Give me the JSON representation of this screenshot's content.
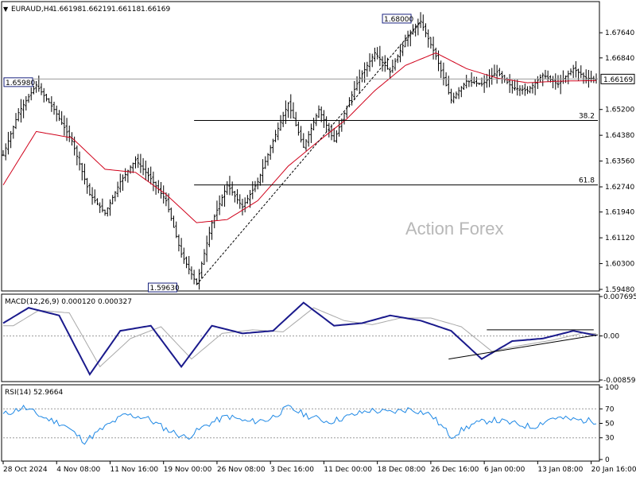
{
  "chart_data": {
    "type": "candlestick",
    "title": "EURAUD,H4",
    "ohlc": {
      "open": "1.66198",
      "high": "1.66219",
      "low": "1.66118",
      "close": "1.66169"
    },
    "watermark": "Action Forex",
    "price_panel": {
      "ylim": [
        1.5948,
        1.6858
      ],
      "yticks": [
        "1.67640",
        "1.66840",
        "1.66169",
        "1.65200",
        "1.64380",
        "1.63560",
        "1.62740",
        "1.61940",
        "1.61120",
        "1.60300",
        "1.59480"
      ],
      "current_price": "1.66169",
      "price_series_x_index": [
        0,
        6,
        13,
        20,
        27,
        34,
        40,
        46,
        52,
        58,
        64,
        70,
        76,
        82,
        88,
        94,
        100,
        106,
        112,
        118,
        124,
        130,
        135,
        140,
        146,
        152,
        158,
        164,
        170,
        176,
        182,
        188,
        194,
        200,
        206,
        212,
        218,
        224,
        229,
        233
      ],
      "price_series": [
        1.6375,
        1.651,
        1.6598,
        1.652,
        1.642,
        1.625,
        1.619,
        1.629,
        1.636,
        1.63,
        1.623,
        1.606,
        1.5965,
        1.616,
        1.628,
        1.621,
        1.629,
        1.642,
        1.654,
        1.64,
        1.652,
        1.642,
        1.653,
        1.662,
        1.67,
        1.664,
        1.674,
        1.68,
        1.669,
        1.655,
        1.661,
        1.66,
        1.664,
        1.659,
        1.658,
        1.663,
        1.66,
        1.665,
        1.662,
        1.6617
      ],
      "ma_series_x_index": [
        0,
        13,
        27,
        40,
        52,
        64,
        76,
        88,
        100,
        112,
        124,
        135,
        146,
        158,
        170,
        182,
        194,
        206,
        218,
        233
      ],
      "ma_series": [
        1.628,
        1.645,
        1.643,
        1.633,
        1.632,
        1.625,
        1.616,
        1.617,
        1.623,
        1.634,
        1.642,
        1.649,
        1.658,
        1.666,
        1.67,
        1.665,
        1.662,
        1.6605,
        1.661,
        1.6612
      ],
      "annotations": [
        {
          "label": "1.65980",
          "price": 1.6598
        },
        {
          "label": "1.68000",
          "price": 1.68
        },
        {
          "label": "1.59630",
          "price": 1.5963
        }
      ],
      "fib_levels": [
        {
          "label": "38.2",
          "price": 1.6485
        },
        {
          "label": "61.8",
          "price": 1.628
        }
      ]
    },
    "macd_panel": {
      "label": "MACD(12,26,9) 0.000120 0.000327",
      "ylim": [
        -0.008599,
        0.007695
      ],
      "yticks": [
        "0.007695",
        "0.00",
        "-0.008599"
      ],
      "x_index": [
        0,
        10,
        22,
        34,
        46,
        58,
        70,
        82,
        94,
        106,
        118,
        130,
        141,
        152,
        164,
        176,
        188,
        200,
        212,
        224,
        233
      ],
      "macd": [
        0.0025,
        0.0055,
        0.004,
        -0.0075,
        0.001,
        0.002,
        -0.006,
        0.002,
        0.0005,
        0.001,
        0.0065,
        0.002,
        0.0025,
        0.004,
        0.003,
        0.001,
        -0.0045,
        -0.001,
        -0.0005,
        0.001,
        0.0001
      ],
      "signal": [
        0.002,
        0.005,
        0.0045,
        -0.006,
        -0.0005,
        0.0018,
        -0.0045,
        0.0005,
        0.0012,
        0.0008,
        0.0055,
        0.003,
        0.0022,
        0.0035,
        0.0035,
        0.0018,
        -0.003,
        -0.0018,
        -0.0008,
        0.0006,
        0.0003
      ]
    },
    "rsi_panel": {
      "label": "RSI(14) 52.9664",
      "ylim": [
        0,
        100
      ],
      "yticks": [
        "100",
        "70",
        "50",
        "30",
        "0"
      ],
      "x_index": [
        0,
        8,
        16,
        24,
        32,
        40,
        48,
        56,
        64,
        72,
        80,
        88,
        96,
        104,
        112,
        120,
        128,
        136,
        144,
        152,
        160,
        168,
        176,
        184,
        192,
        200,
        208,
        216,
        224,
        233
      ],
      "rsi": [
        62,
        72,
        58,
        48,
        25,
        45,
        62,
        58,
        42,
        30,
        48,
        60,
        52,
        55,
        72,
        60,
        52,
        60,
        68,
        65,
        70,
        62,
        32,
        48,
        55,
        50,
        45,
        58,
        55,
        53
      ]
    },
    "x_tick_labels": [
      "28 Oct 2024",
      "4 Nov 08:00",
      "11 Nov 16:00",
      "19 Nov 00:00",
      "26 Nov 08:00",
      "3 Dec 16:00",
      "11 Dec 00:00",
      "18 Dec 08:00",
      "26 Dec 16:00",
      "6 Jan 00:00",
      "13 Jan 08:00",
      "20 Jan 16:00"
    ],
    "x_tick_index": [
      0,
      21,
      42,
      63,
      84,
      105,
      126,
      147,
      168,
      189,
      210,
      231
    ]
  }
}
